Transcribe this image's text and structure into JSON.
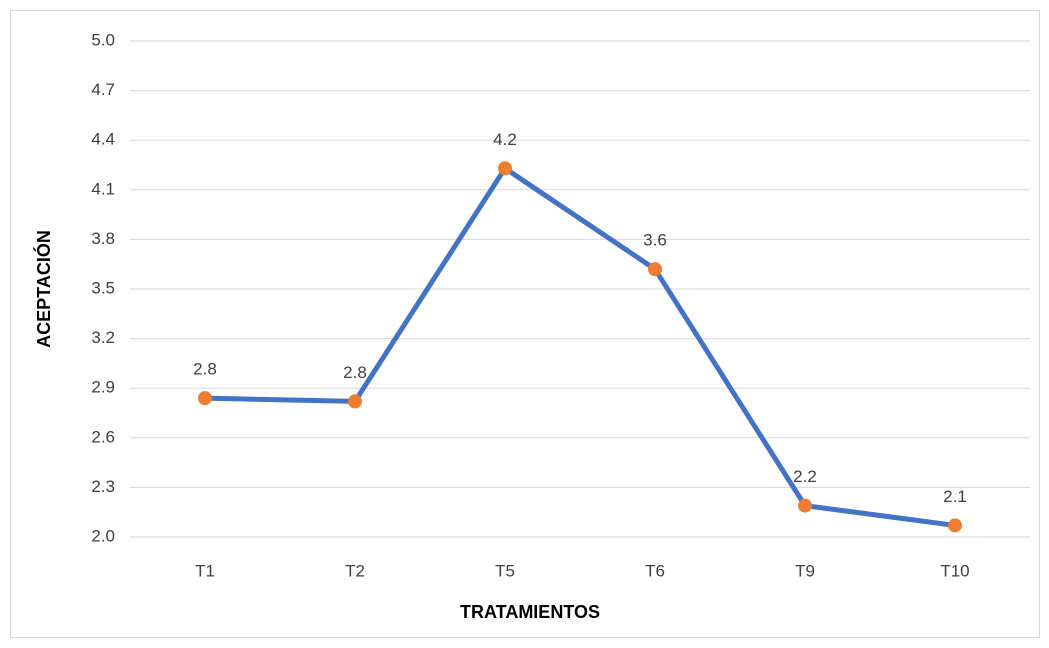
{
  "chart_data": {
    "type": "line",
    "x_label": "TRATAMIENTOS",
    "y_label": "ACEPTACIÓN",
    "categories": [
      "T1",
      "T2",
      "T5",
      "T6",
      "T9",
      "T10"
    ],
    "series": [
      {
        "name": "ACEPTACIÓN",
        "color": "#4472c4",
        "marker_color": "#ed7d31",
        "values": [
          2.84,
          2.82,
          4.23,
          3.62,
          2.19,
          2.07
        ],
        "value_labels": [
          "2.8",
          "2.8",
          "4.2",
          "3.6",
          "2.2",
          "2.1"
        ]
      }
    ],
    "ylim": [
      2.0,
      5.0
    ],
    "yticks": [
      {
        "value": 2.0,
        "label": "2.0"
      },
      2.3,
      2.6,
      2.9,
      3.2,
      3.5,
      3.8,
      4.1,
      4.4,
      4.7,
      {
        "value": 5.0,
        "label": "5.0"
      }
    ],
    "grid": true
  }
}
